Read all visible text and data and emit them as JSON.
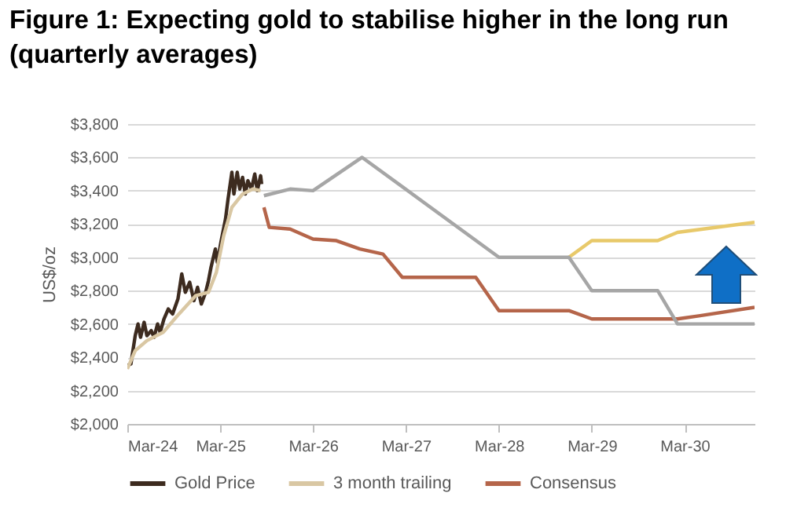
{
  "chart_data": {
    "type": "line",
    "title": "Figure 1: Expecting gold to stabilise higher in the long run",
    "subtitle": "(quarterly averages)",
    "ylabel": "US$/oz",
    "xlim": [
      "2024-03-01",
      "2030-12-01"
    ],
    "xticks": [
      {
        "value": "2024-03-01",
        "label": "Mar-24"
      },
      {
        "value": "2025-03-01",
        "label": "Mar-25"
      },
      {
        "value": "2026-03-01",
        "label": "Mar-26"
      },
      {
        "value": "2027-03-01",
        "label": "Mar-27"
      },
      {
        "value": "2028-03-01",
        "label": "Mar-28"
      },
      {
        "value": "2029-03-01",
        "label": "Mar-29"
      },
      {
        "value": "2030-03-01",
        "label": "Mar-30"
      }
    ],
    "ylim": [
      2000,
      3800
    ],
    "yticks": [
      {
        "value": 2000,
        "label": "$2,000"
      },
      {
        "value": 2200,
        "label": "$2,200"
      },
      {
        "value": 2400,
        "label": "$2,400"
      },
      {
        "value": 2600,
        "label": "$2,600"
      },
      {
        "value": 2800,
        "label": "$2,800"
      },
      {
        "value": 3000,
        "label": "$3,000"
      },
      {
        "value": 3200,
        "label": "$3,200"
      },
      {
        "value": 3400,
        "label": "$3,400"
      },
      {
        "value": 3600,
        "label": "$3,600"
      },
      {
        "value": 3800,
        "label": "$3,800"
      }
    ],
    "grid": "y",
    "legend": "bottom",
    "line_style": "solid",
    "marker": "none",
    "series": [
      {
        "name": "Gold Price",
        "color": "#3d2b1f",
        "x": [
          "2024-03-01",
          "2024-03-15",
          "2024-04-01",
          "2024-04-12",
          "2024-04-22",
          "2024-05-06",
          "2024-05-17",
          "2024-06-03",
          "2024-06-14",
          "2024-06-28",
          "2024-07-08",
          "2024-07-23",
          "2024-08-09",
          "2024-08-26",
          "2024-09-16",
          "2024-10-01",
          "2024-10-15",
          "2024-11-01",
          "2024-11-18",
          "2024-12-02",
          "2024-12-17",
          "2025-01-03",
          "2025-01-14",
          "2025-01-24",
          "2025-02-10",
          "2025-02-18",
          "2025-03-05",
          "2025-03-22",
          "2025-04-01",
          "2025-04-16",
          "2025-04-24",
          "2025-05-07",
          "2025-05-17",
          "2025-05-28",
          "2025-06-08",
          "2025-06-18",
          "2025-07-02",
          "2025-07-15",
          "2025-07-25",
          "2025-08-07",
          "2025-08-11"
        ],
        "values": [
          2350,
          2360,
          2530,
          2600,
          2520,
          2610,
          2530,
          2560,
          2520,
          2600,
          2550,
          2630,
          2690,
          2660,
          2750,
          2900,
          2790,
          2850,
          2740,
          2820,
          2720,
          2790,
          2860,
          2940,
          3050,
          2970,
          3100,
          3230,
          3350,
          3510,
          3380,
          3510,
          3410,
          3480,
          3380,
          3460,
          3410,
          3500,
          3400,
          3490,
          3440
        ]
      },
      {
        "name": "3 month trailing",
        "color": "#d9c7a3",
        "x": [
          "2024-03-01",
          "2024-04-01",
          "2024-05-17",
          "2024-07-20",
          "2024-09-20",
          "2024-11-25",
          "2025-01-14",
          "2025-02-14",
          "2025-03-15",
          "2025-04-16",
          "2025-05-28",
          "2025-07-08",
          "2025-08-07"
        ],
        "values": [
          2330,
          2440,
          2500,
          2550,
          2660,
          2770,
          2790,
          2910,
          3130,
          3300,
          3380,
          3410,
          3400
        ]
      },
      {
        "name": "Consensus",
        "color": "#b5654a",
        "x": [
          "2025-08-20",
          "2025-09-10",
          "2025-12-01",
          "2026-03-01",
          "2026-06-01",
          "2026-09-01",
          "2026-12-01",
          "2027-02-15",
          "2027-12-01",
          "2028-03-01",
          "2028-12-01",
          "2029-03-01",
          "2030-02-01",
          "2030-05-01",
          "2030-12-01"
        ],
        "values": [
          3300,
          3180,
          3170,
          3110,
          3100,
          3050,
          3020,
          2880,
          2880,
          2680,
          2680,
          2630,
          2630,
          2650,
          2700
        ]
      },
      {
        "color": "#e8c96a",
        "x": [
          "2028-12-01",
          "2029-03-01",
          "2029-11-15",
          "2030-02-01",
          "2030-12-01"
        ],
        "values": [
          3000,
          3100,
          3100,
          3150,
          3210
        ]
      },
      {
        "color": "#a6a6a6",
        "x": [
          "2025-08-20",
          "2025-12-01",
          "2026-03-01",
          "2026-09-10",
          "2028-03-01",
          "2028-12-01",
          "2029-03-01",
          "2029-11-15",
          "2030-02-01",
          "2030-12-01"
        ],
        "values": [
          3370,
          3410,
          3400,
          3600,
          3000,
          3000,
          2800,
          2800,
          2600,
          2600
        ]
      }
    ]
  }
}
